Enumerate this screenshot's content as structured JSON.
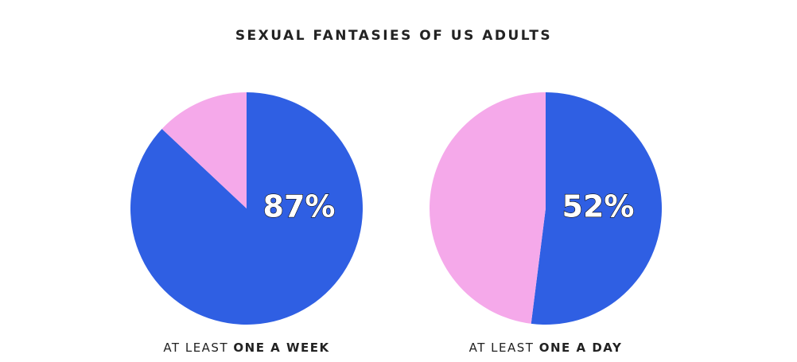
{
  "title": "SEXUAL FANTASIES OF US ADULTS",
  "chart_data": [
    {
      "type": "pie",
      "values": [
        87,
        13
      ],
      "value_labels": [
        "87%",
        null
      ],
      "colors": [
        "#2f5fe3",
        "#f5a9ea"
      ],
      "caption": {
        "text": "AT LEAST",
        "emphasis": "ONE A WEEK"
      }
    },
    {
      "type": "pie",
      "values": [
        52,
        48
      ],
      "value_labels": [
        "52%",
        null
      ],
      "colors": [
        "#2f5fe3",
        "#f5a9ea"
      ],
      "caption": {
        "text": "AT LEAST",
        "emphasis": "ONE A DAY"
      }
    }
  ]
}
